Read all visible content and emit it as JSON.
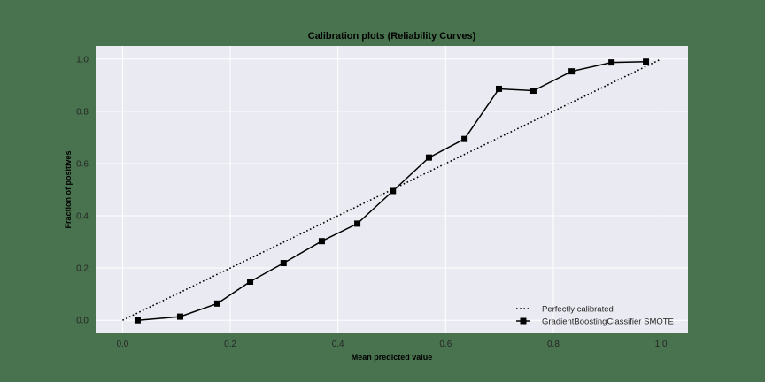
{
  "figure": {
    "background": "#48734e",
    "plot_background": "#eaeaf2",
    "grid_color": "#ffffff",
    "line_color": "#000000"
  },
  "chart_data": {
    "type": "line",
    "title": "Calibration plots (Reliability Curves)",
    "xlabel": "Mean predicted value",
    "ylabel": "Fraction of positives",
    "xlim": [
      -0.05,
      1.05
    ],
    "ylim": [
      -0.05,
      1.05
    ],
    "grid": true,
    "xticks": [
      "0.0",
      "0.2",
      "0.4",
      "0.6",
      "0.8",
      "1.0"
    ],
    "yticks": [
      "0.0",
      "0.2",
      "0.4",
      "0.6",
      "0.8",
      "1.0"
    ],
    "legend_position": "lower right",
    "series": [
      {
        "name": "Perfectly calibrated",
        "style": "dotted",
        "marker": "none",
        "x": [
          0.0,
          1.0
        ],
        "y": [
          0.0,
          1.0
        ]
      },
      {
        "name": "GradientBoostingClassifier SMOTE",
        "style": "solid",
        "marker": "square",
        "x": [
          0.028,
          0.107,
          0.176,
          0.237,
          0.299,
          0.37,
          0.436,
          0.502,
          0.569,
          0.635,
          0.699,
          0.763,
          0.834,
          0.908,
          0.972
        ],
        "y": [
          0.0,
          0.014,
          0.064,
          0.148,
          0.219,
          0.303,
          0.37,
          0.495,
          0.623,
          0.694,
          0.886,
          0.879,
          0.953,
          0.987,
          0.99
        ]
      }
    ]
  }
}
